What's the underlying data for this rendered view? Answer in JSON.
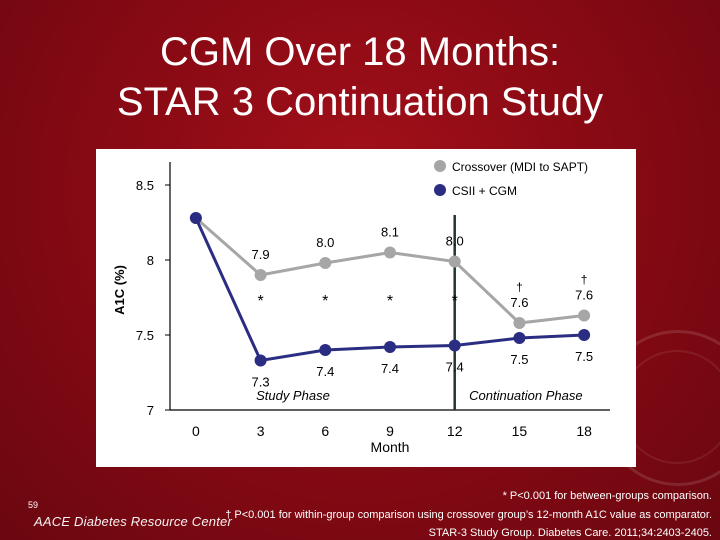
{
  "slide": {
    "title_line1": "CGM Over 18 Months:",
    "title_line2": "STAR 3 Continuation Study",
    "slide_number": "59",
    "logo_text": "AACE Diabetes Resource Center",
    "footnote_between": "* P<0.001 for between-groups comparison.",
    "footnote_within": "† P<0.001 for within-group comparison using crossover group’s 12-month A1C value as comparator.",
    "citation": "STAR-3 Study Group. Diabetes Care. 2011;34:2403-2405."
  },
  "colors": {
    "background": "#8a0a14",
    "crossover": "#a6a6a6",
    "csii": "#2b2d82",
    "divider": "#1f3a2a"
  },
  "chart_data": {
    "type": "line",
    "title": "",
    "xlabel": "Month",
    "ylabel": "A1C (%)",
    "x": [
      0,
      3,
      6,
      9,
      12,
      15,
      18
    ],
    "x_tick_labels": [
      "0",
      "3",
      "6",
      "9",
      "12",
      "15",
      "18"
    ],
    "y_ticks": [
      7,
      7.5,
      8,
      8.5
    ],
    "y_tick_labels": [
      "7",
      "7.5",
      "8",
      "8.5"
    ],
    "ylim": [
      7,
      8.6
    ],
    "xlim": [
      -1.2,
      19.2
    ],
    "legend_position": "top-right",
    "series": [
      {
        "name": "Crossover (MDI to SAPT)",
        "color": "#a6a6a6",
        "values": [
          8.28,
          7.9,
          7.98,
          8.05,
          7.99,
          7.58,
          7.63
        ],
        "labels": [
          "",
          "7.9",
          "8.0",
          "8.1",
          "8.0",
          "7.6",
          "7.6"
        ],
        "markers": [
          "",
          "",
          "",
          "",
          "",
          "†",
          "†"
        ]
      },
      {
        "name": "CSII + CGM",
        "color": "#2b2d82",
        "values": [
          8.28,
          7.33,
          7.4,
          7.42,
          7.43,
          7.48,
          7.5
        ],
        "labels": [
          "",
          "7.3",
          "7.4",
          "7.4",
          "7.4",
          "7.5",
          "7.5"
        ]
      }
    ],
    "between_group_asterisks": [
      {
        "x": 3,
        "text": "*"
      },
      {
        "x": 6,
        "text": "*"
      },
      {
        "x": 9,
        "text": "*"
      },
      {
        "x": 12,
        "text": "*"
      }
    ],
    "phase_divider_x": 12,
    "phases": [
      {
        "name": "Study Phase",
        "x_center": 4.5
      },
      {
        "name": "Continuation Phase",
        "x_center": 15.3
      }
    ]
  }
}
